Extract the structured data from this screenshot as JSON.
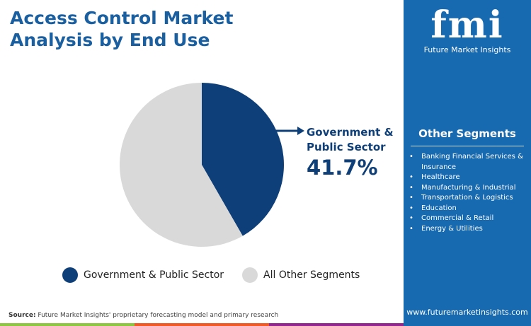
{
  "title": "Access Control Market Analysis by End Use",
  "logo": {
    "text": "fmi",
    "subtitle": "Future Market Insights"
  },
  "other_segments": {
    "title": "Other Segments",
    "items": [
      "Banking Financial Services & Insurance",
      "Healthcare",
      "Manufacturing & Industrial",
      "Transportation & Logistics",
      "Education",
      "Commercial & Retail",
      "Energy & Utilities"
    ]
  },
  "callout": {
    "label": "Government & Public Sector",
    "value": "41.7%"
  },
  "source": {
    "label": "Source:",
    "text": " Future Market Insights' proprietary forecasting model and primary research"
  },
  "url": "www.futuremarketinsights.com",
  "colors": {
    "primary": "#0e3f78",
    "other": "#d9d9d9",
    "panel": "#1769b0",
    "bar": [
      "#8dc63f",
      "#f15a24",
      "#93278f"
    ]
  },
  "chart_data": {
    "type": "pie",
    "series": [
      {
        "name": "Government & Public Sector",
        "value": 41.7,
        "color": "#0e3f78"
      },
      {
        "name": "All Other Segments",
        "value": 58.3,
        "color": "#d9d9d9"
      }
    ],
    "legend": "bottom"
  }
}
